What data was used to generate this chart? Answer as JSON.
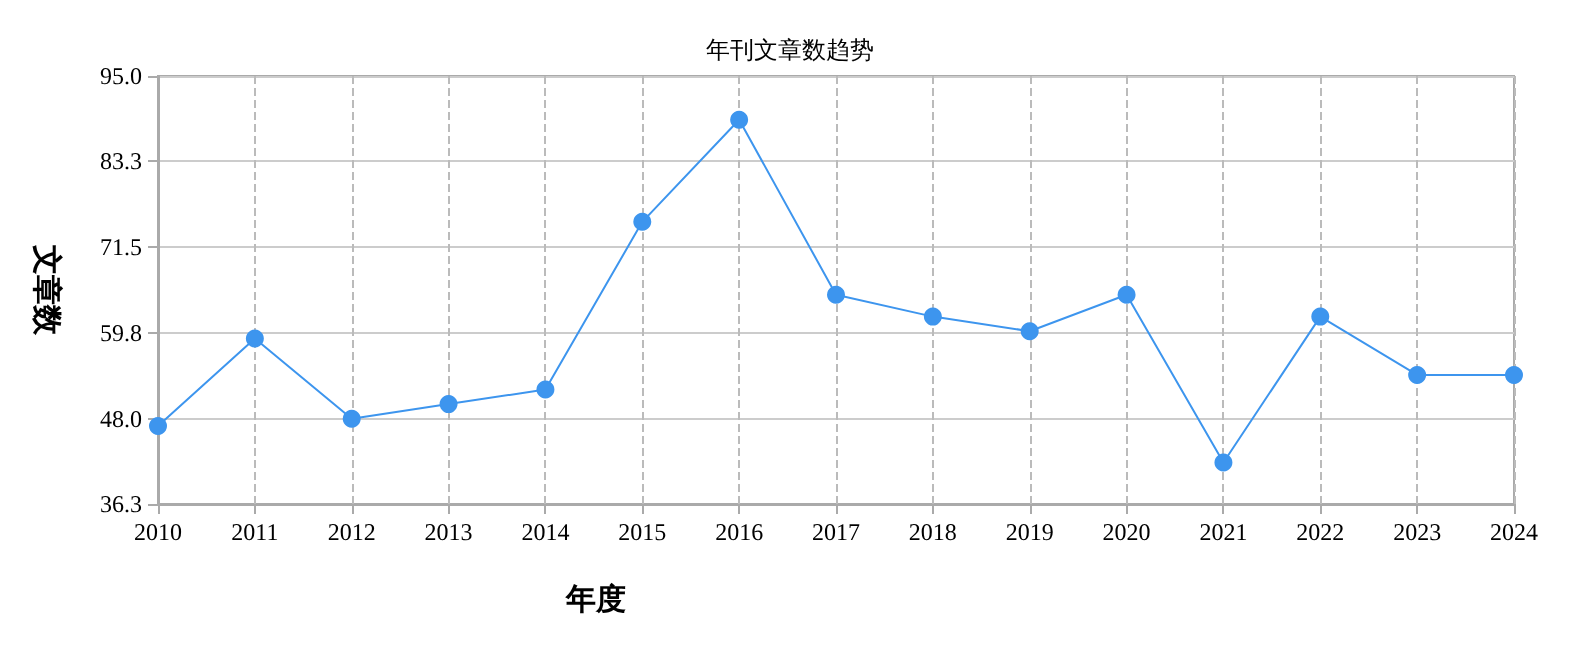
{
  "chart_data": {
    "type": "line",
    "title": "年刊文章数趋势",
    "xlabel": "年度",
    "ylabel": "文章数",
    "categories": [
      "2010",
      "2011",
      "2012",
      "2013",
      "2014",
      "2015",
      "2016",
      "2017",
      "2018",
      "2019",
      "2020",
      "2021",
      "2022",
      "2023",
      "2024"
    ],
    "series": [
      {
        "color": "#3d95ee",
        "values": [
          47,
          59,
          48,
          50,
          52,
          75,
          89,
          65,
          62,
          60,
          65,
          42,
          62,
          54,
          54
        ]
      }
    ],
    "ylim": [
      36.3,
      95.0
    ],
    "yticks": [
      {
        "value": 36.3,
        "label": "36.3"
      },
      {
        "value": 48.0,
        "label": "48.0"
      },
      {
        "value": 59.8,
        "label": "59.8"
      },
      {
        "value": 71.5,
        "label": "71.5"
      },
      {
        "value": 83.3,
        "label": "83.3"
      },
      {
        "value": 95.0,
        "label": "95.0"
      }
    ],
    "grid": true,
    "marker": "circle",
    "line_style": "solid"
  }
}
